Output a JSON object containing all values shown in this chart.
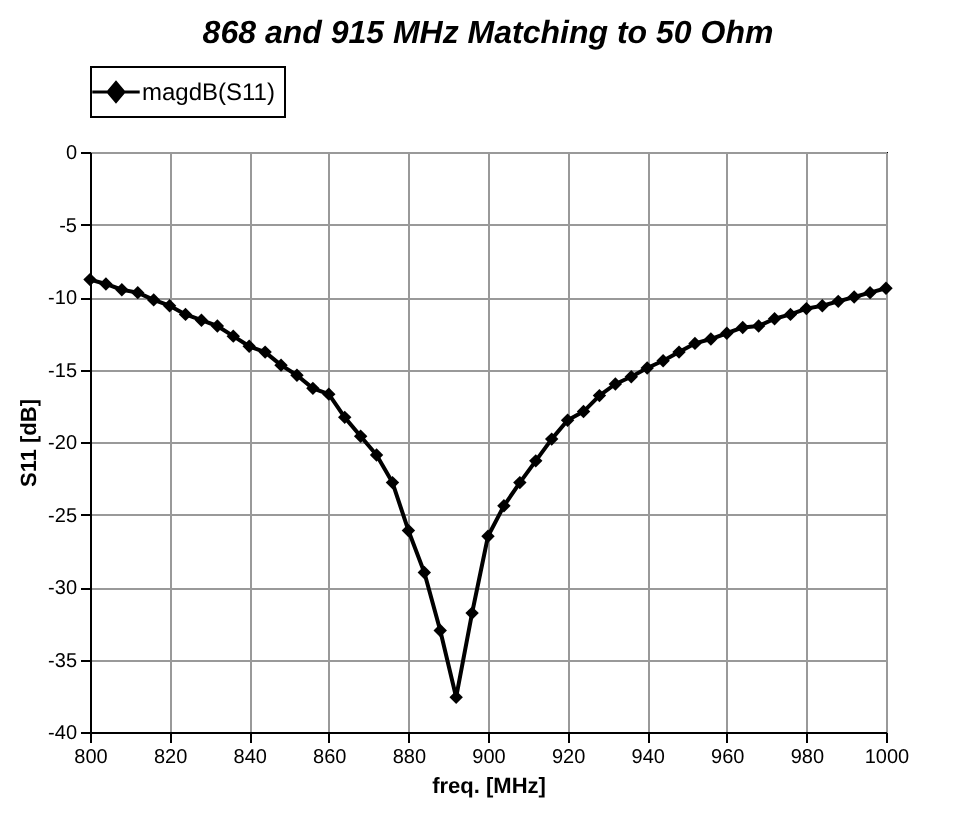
{
  "chart_data": {
    "type": "line",
    "title": "868 and 915 MHz Matching to 50 Ohm",
    "xlabel": "freq. [MHz]",
    "ylabel": "S11 [dB]",
    "x": [
      800,
      804,
      808,
      812,
      816,
      820,
      824,
      828,
      832,
      836,
      840,
      844,
      848,
      852,
      856,
      860,
      864,
      868,
      872,
      876,
      880,
      884,
      888,
      892,
      896,
      900,
      904,
      908,
      912,
      916,
      920,
      924,
      928,
      932,
      936,
      940,
      944,
      948,
      952,
      956,
      960,
      964,
      968,
      972,
      976,
      980,
      984,
      988,
      992,
      996,
      1000
    ],
    "series": [
      {
        "name": "magdB(S11)",
        "color": "#000000",
        "values": [
          -8.8,
          -9.1,
          -9.5,
          -9.7,
          -10.2,
          -10.6,
          -11.2,
          -11.6,
          -12.0,
          -12.7,
          -13.4,
          -13.8,
          -14.7,
          -15.4,
          -16.3,
          -16.7,
          -18.3,
          -19.6,
          -20.9,
          -22.8,
          -26.1,
          -29.0,
          -33.0,
          -37.6,
          -31.8,
          -26.5,
          -24.4,
          -22.8,
          -21.3,
          -19.8,
          -18.5,
          -17.9,
          -16.8,
          -16.0,
          -15.5,
          -14.9,
          -14.4,
          -13.8,
          -13.2,
          -12.9,
          -12.5,
          -12.1,
          -12.0,
          -11.5,
          -11.2,
          -10.8,
          -10.6,
          -10.3,
          -10.0,
          -9.7,
          -9.4
        ]
      }
    ],
    "xlim": [
      800,
      1000
    ],
    "xticks": [
      800,
      820,
      840,
      860,
      880,
      900,
      920,
      940,
      960,
      980,
      1000
    ],
    "ylim": [
      -40,
      0
    ],
    "yticks": [
      -40,
      -35,
      -30,
      -25,
      -20,
      -15,
      -10,
      -5,
      0
    ],
    "grid": true,
    "legend": "top",
    "marker": "diamond",
    "line_style": "solid"
  }
}
